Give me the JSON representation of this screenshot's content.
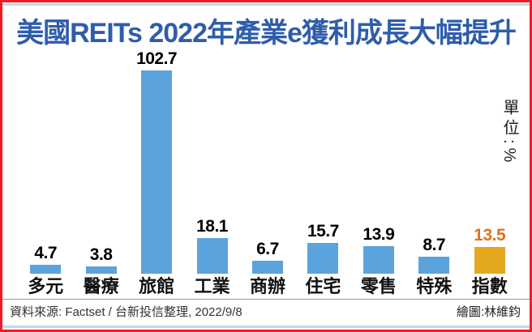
{
  "window": {
    "border_color": "#EE1D25",
    "accent_line_color": "#BDDAF1",
    "background": "#FFFFFF"
  },
  "header": {
    "title": "美國REITs 2022年產業e獲利成長大幅提升",
    "title_color": "#2E5DAB"
  },
  "unit_label": "單位:%",
  "chart_data": {
    "type": "bar",
    "title": "美國REITs 2022年產業e獲利成長大幅提升",
    "categories": [
      "多元",
      "醫療",
      "旅館",
      "工業",
      "商辦",
      "住宅",
      "零售",
      "特殊",
      "指數"
    ],
    "values": [
      4.7,
      3.8,
      102.7,
      18.1,
      6.7,
      15.7,
      13.9,
      8.7,
      13.5
    ],
    "unit": "%",
    "ylim": [
      0,
      110
    ],
    "grid": false,
    "legend": "none",
    "data_labels": true,
    "highlight_index": 8,
    "bar_color_default": "#5BA3DC",
    "bar_color_highlight": "#E4A81F",
    "value_label_color_default": "#000000",
    "value_label_color_highlight": "#E2711D"
  },
  "footer": {
    "source": "資料來源: Factset / 台新投信整理, 2022/9/8",
    "credit": "繪圖:林維鈞"
  }
}
